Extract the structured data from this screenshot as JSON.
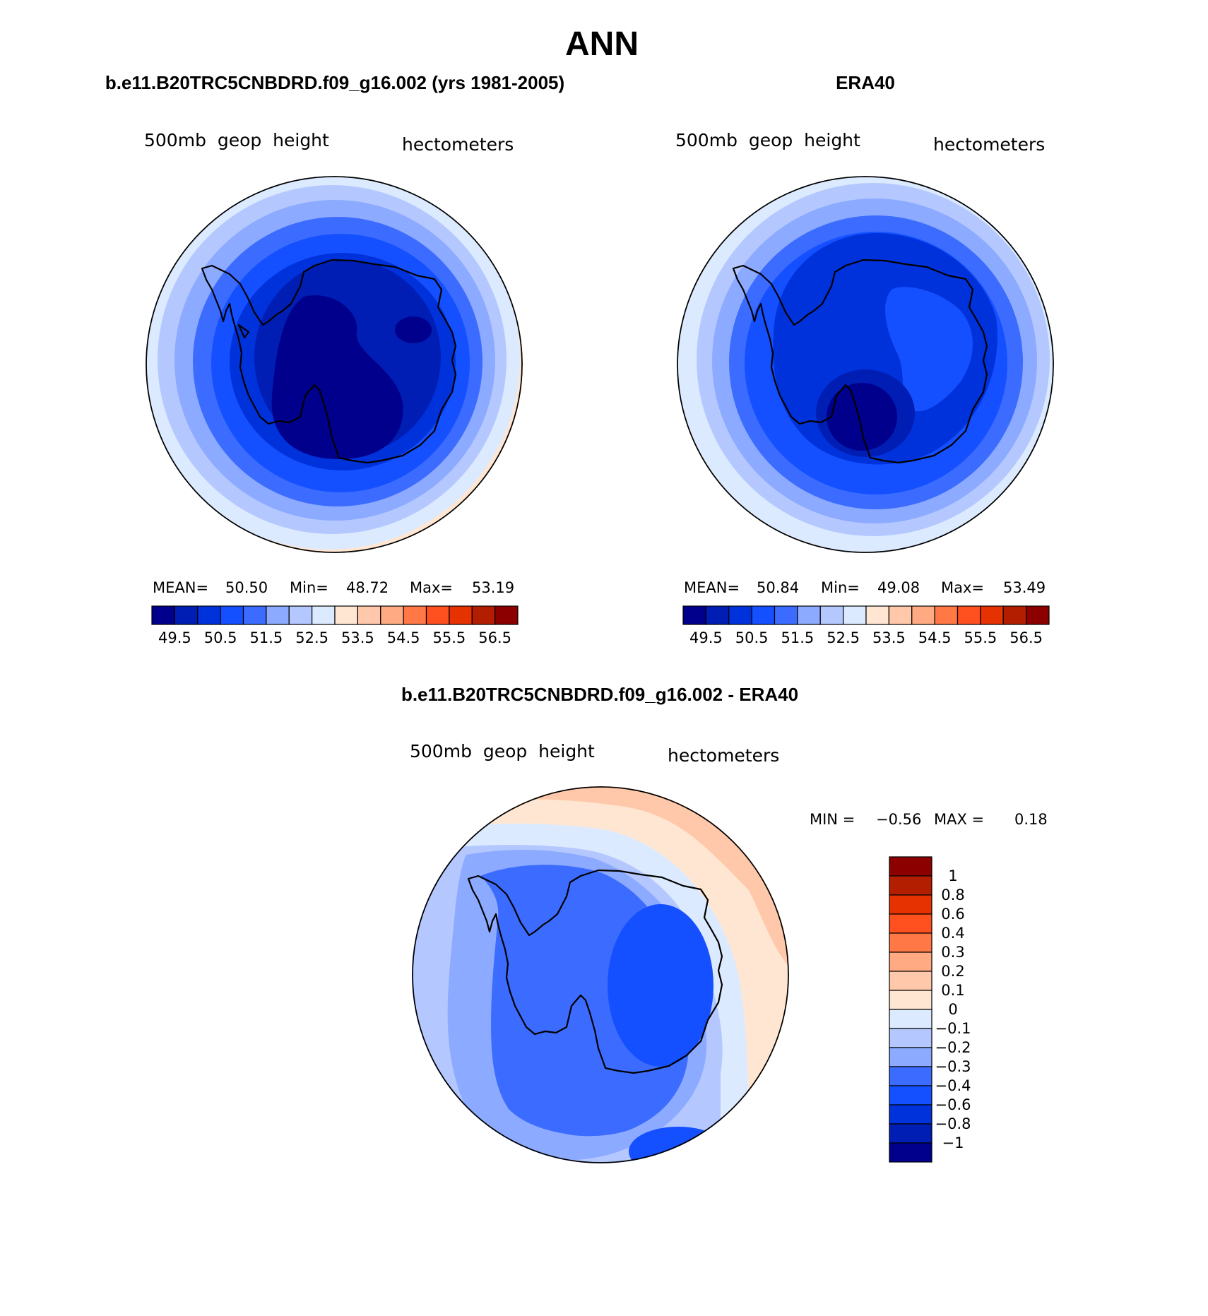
{
  "figure": {
    "title": "ANN"
  },
  "chart_data": [
    {
      "type": "heatmap",
      "projection": "south-polar-stereographic",
      "title": "b.e11.B20TRC5CNBDRD.f09_g16.002 (yrs 1981-2005)",
      "left_label": "500mb  geop  height",
      "right_label": "hectometers",
      "stats": {
        "mean_label": "MEAN=",
        "mean": "50.50",
        "min_label": "Min=",
        "min": "48.72",
        "max_label": "Max=",
        "max": "53.19"
      },
      "colorbar": {
        "orientation": "horizontal",
        "ticks": [
          "49.5",
          "50.5",
          "51.5",
          "52.5",
          "53.5",
          "54.5",
          "55.5",
          "56.5"
        ],
        "colors": [
          "#00008c",
          "#001eb4",
          "#0032dc",
          "#1450ff",
          "#3c6cff",
          "#8caaff",
          "#b4c8ff",
          "#dceaff",
          "#ffe6d2",
          "#ffc8aa",
          "#ffaa82",
          "#ff7846",
          "#ff5020",
          "#e63200",
          "#b41e00",
          "#8c0000"
        ]
      },
      "contour_levels": [
        49.0,
        49.5,
        50.0,
        50.5,
        51.0,
        51.5,
        52.0,
        52.5,
        53.0
      ]
    },
    {
      "type": "heatmap",
      "projection": "south-polar-stereographic",
      "title": "ERA40",
      "left_label": "500mb  geop  height",
      "right_label": "hectometers",
      "stats": {
        "mean_label": "MEAN=",
        "mean": "50.84",
        "min_label": "Min=",
        "min": "49.08",
        "max_label": "Max=",
        "max": "53.49"
      },
      "colorbar": {
        "orientation": "horizontal",
        "ticks": [
          "49.5",
          "50.5",
          "51.5",
          "52.5",
          "53.5",
          "54.5",
          "55.5",
          "56.5"
        ],
        "colors": [
          "#00008c",
          "#001eb4",
          "#0032dc",
          "#1450ff",
          "#3c6cff",
          "#8caaff",
          "#b4c8ff",
          "#dceaff",
          "#ffe6d2",
          "#ffc8aa",
          "#ffaa82",
          "#ff7846",
          "#ff5020",
          "#e63200",
          "#b41e00",
          "#8c0000"
        ]
      },
      "contour_levels": [
        49.0,
        49.5,
        50.0,
        50.5,
        51.0,
        51.5,
        52.0,
        52.5,
        53.0,
        53.5
      ]
    },
    {
      "type": "heatmap",
      "projection": "south-polar-stereographic",
      "title": "b.e11.B20TRC5CNBDRD.f09_g16.002 - ERA40",
      "left_label": "500mb  geop  height",
      "right_label": "hectometers",
      "stats": {
        "min_label": "MIN =",
        "min": "−0.56",
        "max_label": "MAX =",
        "max": "0.18"
      },
      "colorbar": {
        "orientation": "vertical",
        "ticks": [
          "1",
          "0.8",
          "0.6",
          "0.4",
          "0.3",
          "0.2",
          "0.1",
          "0",
          "−0.1",
          "−0.2",
          "−0.3",
          "−0.4",
          "−0.6",
          "−0.8",
          "−1"
        ],
        "colors": [
          "#8c0000",
          "#b41e00",
          "#e63200",
          "#ff5020",
          "#ff7846",
          "#ffaa82",
          "#ffc8aa",
          "#ffe6d2",
          "#dceaff",
          "#b4c8ff",
          "#8caaff",
          "#3c6cff",
          "#1450ff",
          "#0032dc",
          "#001eb4",
          "#00008c"
        ]
      },
      "contour_levels": [
        -0.6,
        -0.4,
        -0.3,
        -0.2,
        -0.1,
        0,
        0.1,
        0.2
      ]
    }
  ]
}
